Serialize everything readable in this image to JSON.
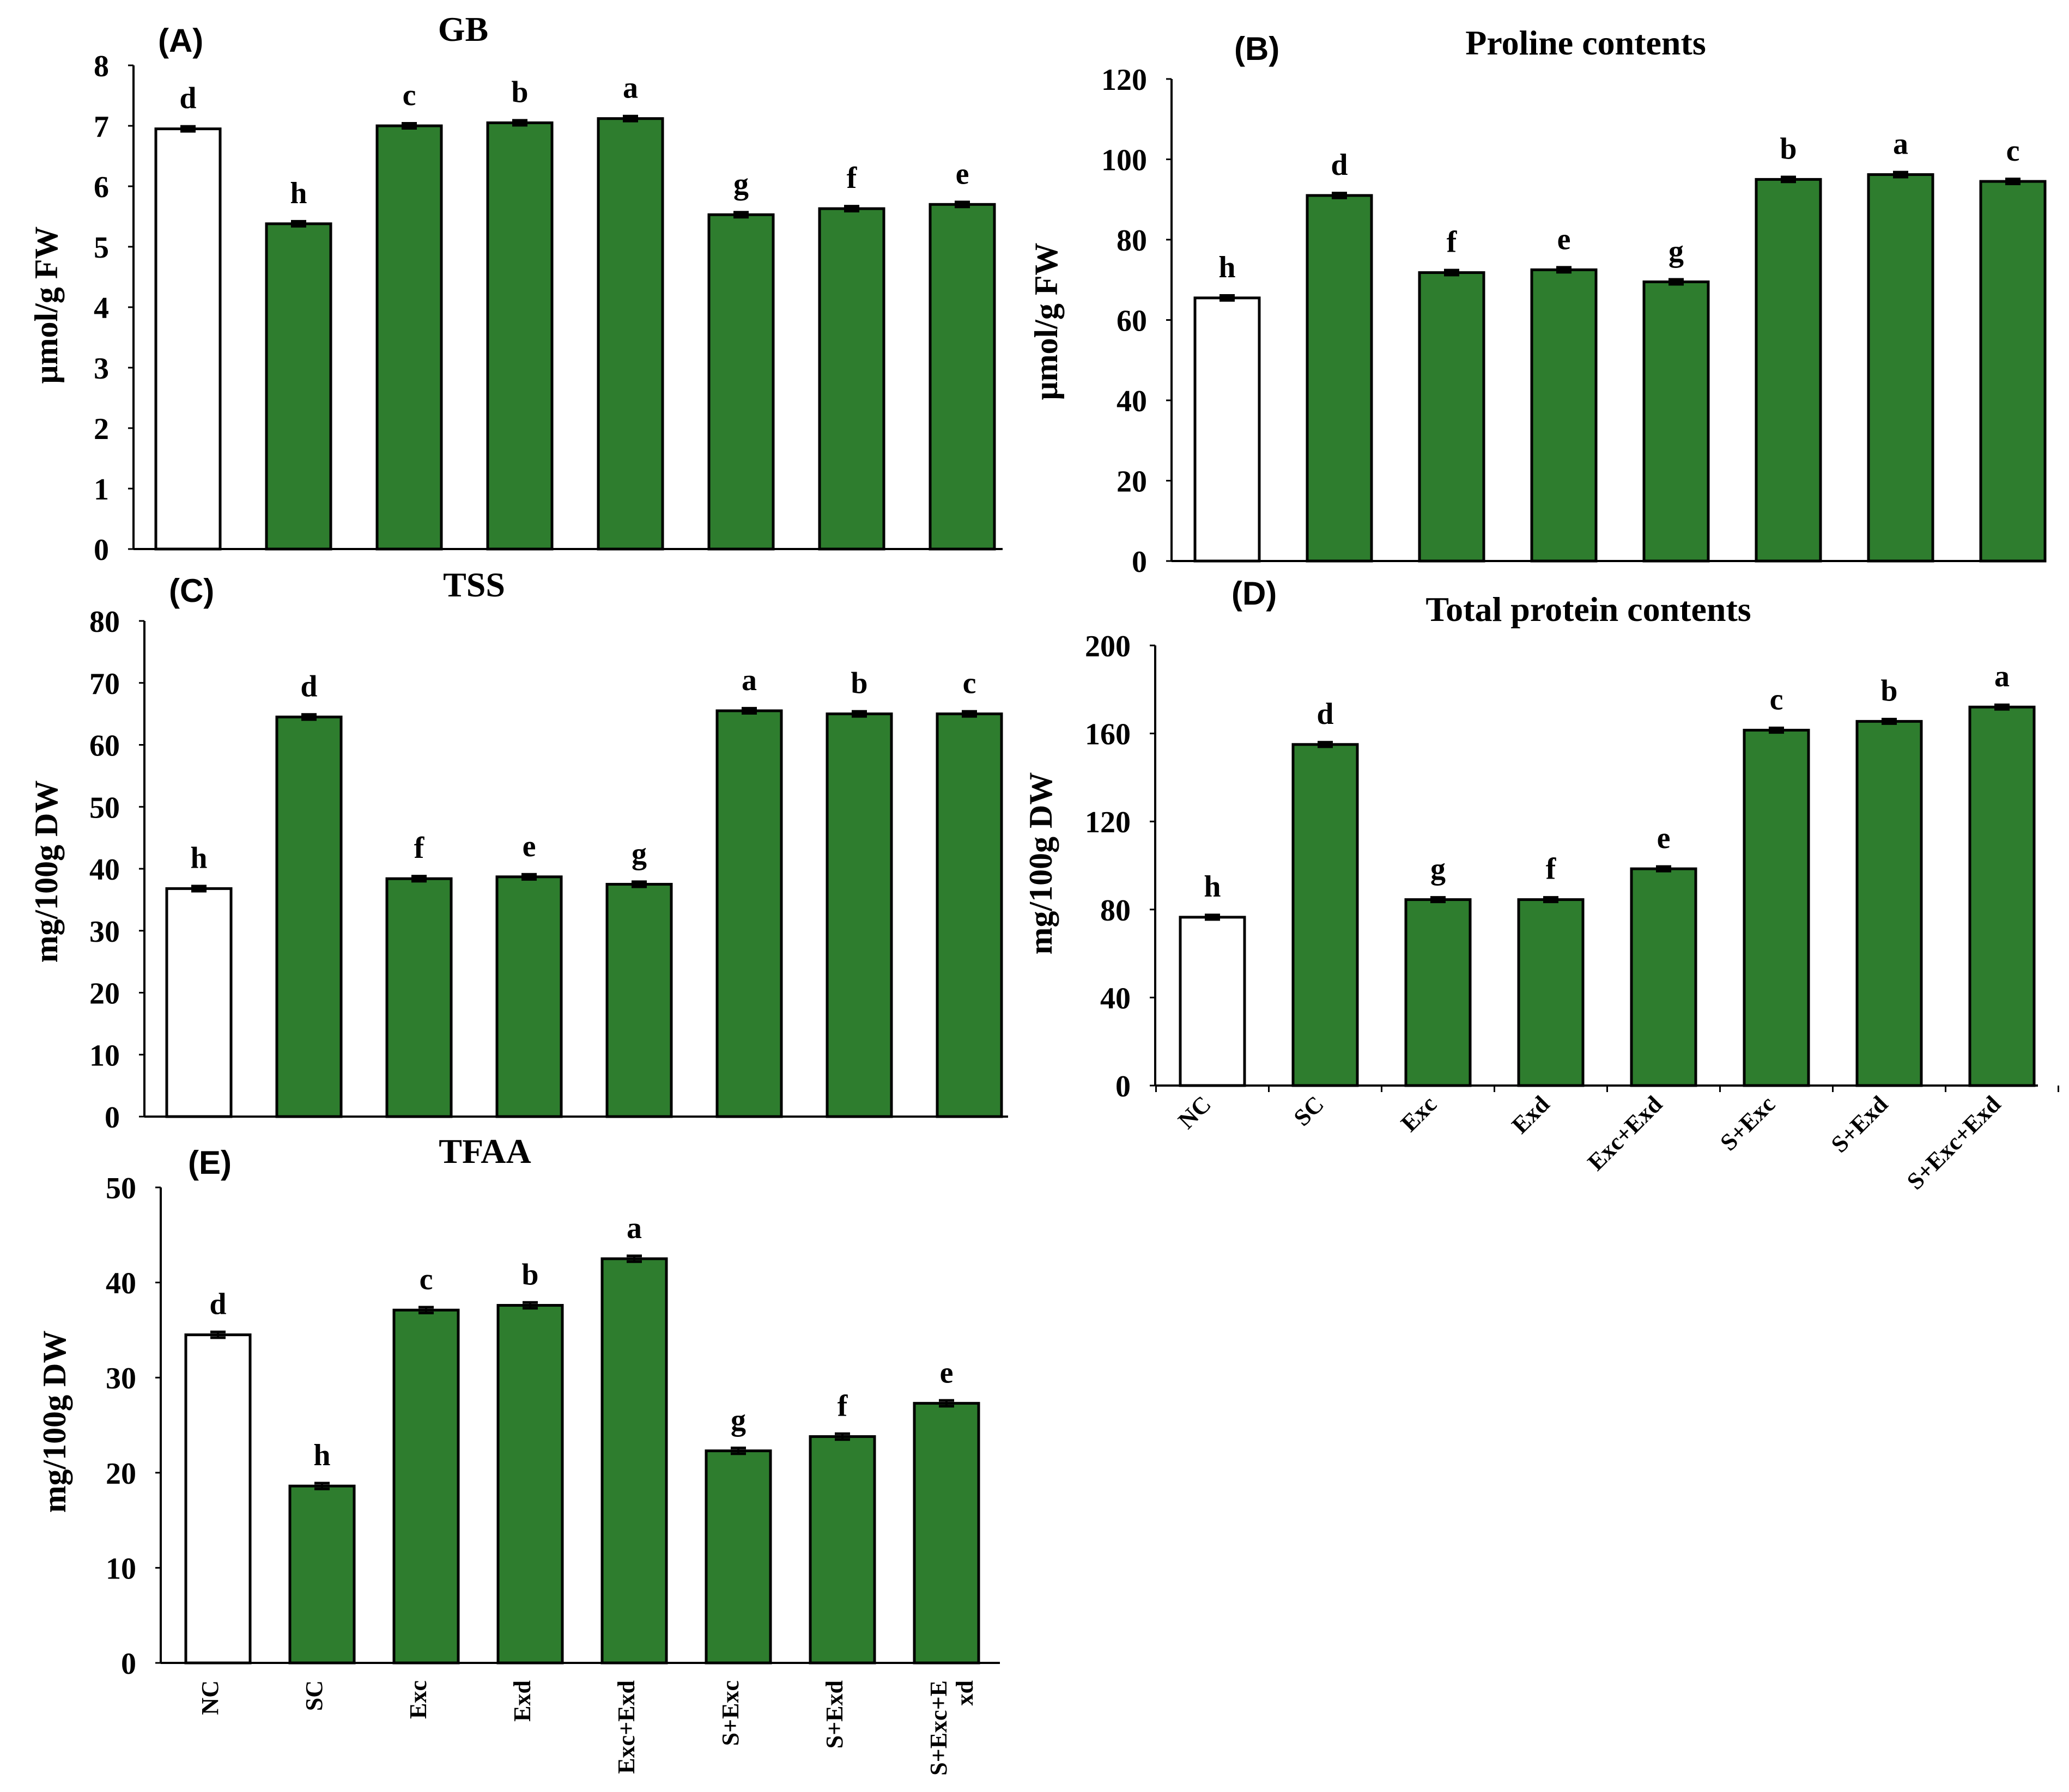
{
  "colors": {
    "control": "#ffffff",
    "treatment": "#2e7d2e",
    "stroke": "#000000"
  },
  "chart_data": [
    {
      "type": "bar",
      "panel": "(A)",
      "title": "GB",
      "ylabel": "μmol/g FW",
      "ylim": [
        0,
        8
      ],
      "yticks": [
        0,
        1,
        2,
        3,
        4,
        5,
        6,
        7,
        8
      ],
      "categories": [
        "NC",
        "SC",
        "Exc",
        "Exd",
        "Exc+Exd",
        "S+Exc",
        "S+Exd",
        "S+Exc+Exd"
      ],
      "values": [
        6.95,
        5.38,
        7.0,
        7.05,
        7.12,
        5.53,
        5.63,
        5.7
      ],
      "errors": [
        0.04,
        0.04,
        0.04,
        0.04,
        0.04,
        0.04,
        0.04,
        0.04
      ],
      "letters": [
        "d",
        "h",
        "c",
        "b",
        "a",
        "g",
        "f",
        "e"
      ],
      "show_categories": false,
      "category_labels": []
    },
    {
      "type": "bar",
      "panel": "(B)",
      "title": "Proline contents",
      "ylabel": "μmol/g FW",
      "ylim": [
        0,
        120
      ],
      "yticks": [
        0,
        20,
        40,
        60,
        80,
        100,
        120
      ],
      "categories": [
        "NC",
        "SC",
        "Exc",
        "Exd",
        "Exc+Exd",
        "S+Exc",
        "S+Exd",
        "S+Exc+Exd"
      ],
      "values": [
        65.5,
        91.0,
        71.8,
        72.5,
        69.5,
        95.0,
        96.2,
        94.5
      ],
      "errors": [
        0.6,
        0.6,
        0.6,
        0.6,
        0.6,
        0.6,
        0.6,
        0.6
      ],
      "letters": [
        "h",
        "d",
        "f",
        "e",
        "g",
        "b",
        "a",
        "c"
      ],
      "show_categories": false,
      "category_labels": []
    },
    {
      "type": "bar",
      "panel": "(C)",
      "title": "TSS",
      "ylabel": "mg/100g DW",
      "ylim": [
        0,
        80
      ],
      "yticks": [
        0,
        10,
        20,
        30,
        40,
        50,
        60,
        70,
        80
      ],
      "categories": [
        "NC",
        "SC",
        "Exc",
        "Exd",
        "Exc+Exd",
        "S+Exc",
        "S+Exd",
        "S+Exc+Exd"
      ],
      "values": [
        36.8,
        64.5,
        38.4,
        38.7,
        37.5,
        65.5,
        65.0,
        65.0
      ],
      "errors": [
        0.4,
        0.4,
        0.4,
        0.4,
        0.4,
        0.4,
        0.4,
        0.4
      ],
      "letters": [
        "h",
        "d",
        "f",
        "e",
        "g",
        "a",
        "b",
        "c"
      ],
      "show_categories": false,
      "category_labels": []
    },
    {
      "type": "bar",
      "panel": "(D)",
      "title": "Total protein contents",
      "ylabel": "mg/100g DW",
      "ylim": [
        0,
        200
      ],
      "yticks": [
        0,
        40,
        80,
        120,
        160,
        200
      ],
      "categories": [
        "NC",
        "SC",
        "Exc",
        "Exd",
        "Exc+Exd",
        "S+Exc",
        "S+Exd",
        "S+Exc+Exd"
      ],
      "values": [
        76.5,
        155.0,
        84.5,
        84.5,
        98.5,
        161.5,
        165.5,
        172.0
      ],
      "errors": [
        1.0,
        1.0,
        1.0,
        1.0,
        1.0,
        1.0,
        1.0,
        1.0
      ],
      "letters": [
        "h",
        "d",
        "g",
        "f",
        "e",
        "c",
        "b",
        "a"
      ],
      "show_categories": true,
      "category_labels": [
        [
          "NC"
        ],
        [
          "SC"
        ],
        [
          "Exc"
        ],
        [
          "Exd"
        ],
        [
          "Exc+Exd"
        ],
        [
          "S+Exc"
        ],
        [
          "S+Exd"
        ],
        [
          "S+Exc+Exd"
        ]
      ]
    },
    {
      "type": "bar",
      "panel": "(E)",
      "title": "TFAA",
      "ylabel": "mg/100g DW",
      "ylim": [
        0,
        50
      ],
      "yticks": [
        0,
        10,
        20,
        30,
        40,
        50
      ],
      "categories": [
        "NC",
        "SC",
        "Exc",
        "Exd",
        "Exc+Exd",
        "S+Exc",
        "S+Exd",
        "S+Exc+Exd"
      ],
      "values": [
        34.5,
        18.6,
        37.1,
        37.6,
        42.5,
        22.3,
        23.8,
        27.3
      ],
      "errors": [
        0.3,
        0.3,
        0.3,
        0.3,
        0.3,
        0.3,
        0.3,
        0.3
      ],
      "letters": [
        "d",
        "h",
        "c",
        "b",
        "a",
        "g",
        "f",
        "e"
      ],
      "show_categories": true,
      "category_labels": [
        [
          "NC"
        ],
        [
          "SC"
        ],
        [
          "Exc"
        ],
        [
          "Exd"
        ],
        [
          "Exc+Exd"
        ],
        [
          "S+Exc"
        ],
        [
          "S+Exd"
        ],
        [
          "S+Exc+E",
          "xd"
        ]
      ]
    }
  ]
}
